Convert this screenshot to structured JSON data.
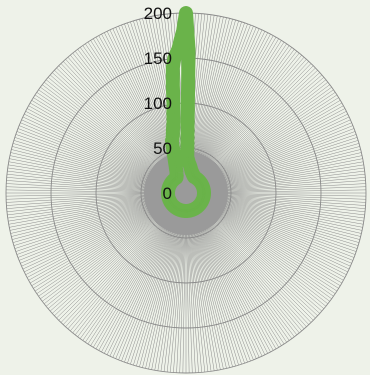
{
  "chart_data": {
    "type": "radar",
    "title": "",
    "rlim": [
      0,
      200
    ],
    "r_ticks": [
      0,
      50,
      100,
      150,
      200
    ],
    "r_tick_labels": [
      "0",
      "50",
      "100",
      "150",
      "200"
    ],
    "spoke_count": 360,
    "grid": true,
    "legend": "none",
    "series": [
      {
        "values": [
          200,
          160,
          40,
          38,
          36,
          34,
          33,
          32,
          31,
          30,
          29,
          28,
          27,
          26,
          25,
          25,
          24,
          24,
          23,
          23,
          22,
          22,
          22,
          21,
          21,
          21,
          20,
          20,
          20,
          20,
          20,
          20,
          20,
          20,
          20,
          20,
          20,
          20,
          20,
          20,
          20,
          20,
          20,
          20,
          20,
          20,
          20,
          20,
          20,
          20,
          20,
          20,
          20,
          20,
          20,
          20,
          20,
          20,
          20,
          20,
          20,
          20,
          20,
          20,
          20,
          20,
          20,
          20,
          20,
          20,
          20,
          20,
          20,
          20,
          20,
          20,
          20,
          20,
          20,
          20,
          20,
          20,
          20,
          20,
          20,
          20,
          20,
          20,
          20,
          20,
          20,
          20,
          20,
          20,
          20,
          20,
          20,
          20,
          20,
          20,
          20,
          20,
          20,
          20,
          20,
          20,
          20,
          20,
          20,
          20,
          20,
          20,
          20,
          20,
          20,
          20,
          20,
          20,
          20,
          20,
          20,
          20,
          20,
          20,
          20,
          20,
          20,
          20,
          20,
          20,
          20,
          20,
          20,
          20,
          20,
          20,
          20,
          20,
          20,
          20,
          20,
          20,
          20,
          20,
          20,
          20,
          20,
          20,
          20,
          20,
          20,
          20,
          20,
          20,
          20,
          20,
          20,
          20,
          20,
          20,
          20,
          20,
          20,
          20,
          20,
          20,
          20,
          20,
          20,
          20,
          20,
          20,
          20,
          20,
          20,
          20,
          20,
          20,
          20,
          20,
          20,
          20,
          20,
          20,
          20,
          20,
          20,
          20,
          20,
          20,
          20,
          20,
          20,
          20,
          20,
          20,
          20,
          20,
          20,
          20,
          20,
          20,
          20,
          20,
          20,
          20,
          20,
          20,
          20,
          20,
          20,
          20,
          20,
          20,
          20,
          20,
          20,
          20,
          20,
          20,
          20,
          20,
          20,
          20,
          20,
          20,
          20,
          20,
          20,
          20,
          20,
          20,
          20,
          20,
          20,
          20,
          20,
          20,
          20,
          20,
          20,
          20,
          20,
          20,
          20,
          20,
          20,
          20,
          20,
          20,
          20,
          20,
          20,
          20,
          20,
          20,
          20,
          20,
          20,
          20,
          20,
          20,
          20,
          20,
          20,
          20,
          20,
          20,
          20,
          20,
          20,
          20,
          20,
          20,
          20,
          20,
          20,
          20,
          20,
          20,
          20,
          20,
          20,
          20,
          20,
          20,
          20,
          20,
          20,
          20,
          20,
          20,
          20,
          20,
          20,
          20,
          20,
          20,
          20,
          20,
          20,
          20,
          20,
          20,
          20,
          20,
          20,
          20,
          20,
          20,
          20,
          20,
          20,
          20,
          20,
          20,
          20,
          20,
          20,
          20,
          20,
          20,
          20,
          20,
          20,
          20,
          20,
          20,
          20,
          21,
          21,
          22,
          22,
          23,
          24,
          25,
          26,
          28,
          30,
          32,
          35,
          38,
          42,
          47,
          53,
          60,
          62,
          65,
          70,
          75,
          80,
          90,
          100,
          120,
          140,
          150,
          155,
          160,
          170,
          180
        ],
        "color": "#6ab34a"
      }
    ],
    "colors": {
      "background": "#eef2e9",
      "grid": "#8a8a8a",
      "center_fill": "#9a9a9a",
      "series": "#6ab34a"
    }
  }
}
